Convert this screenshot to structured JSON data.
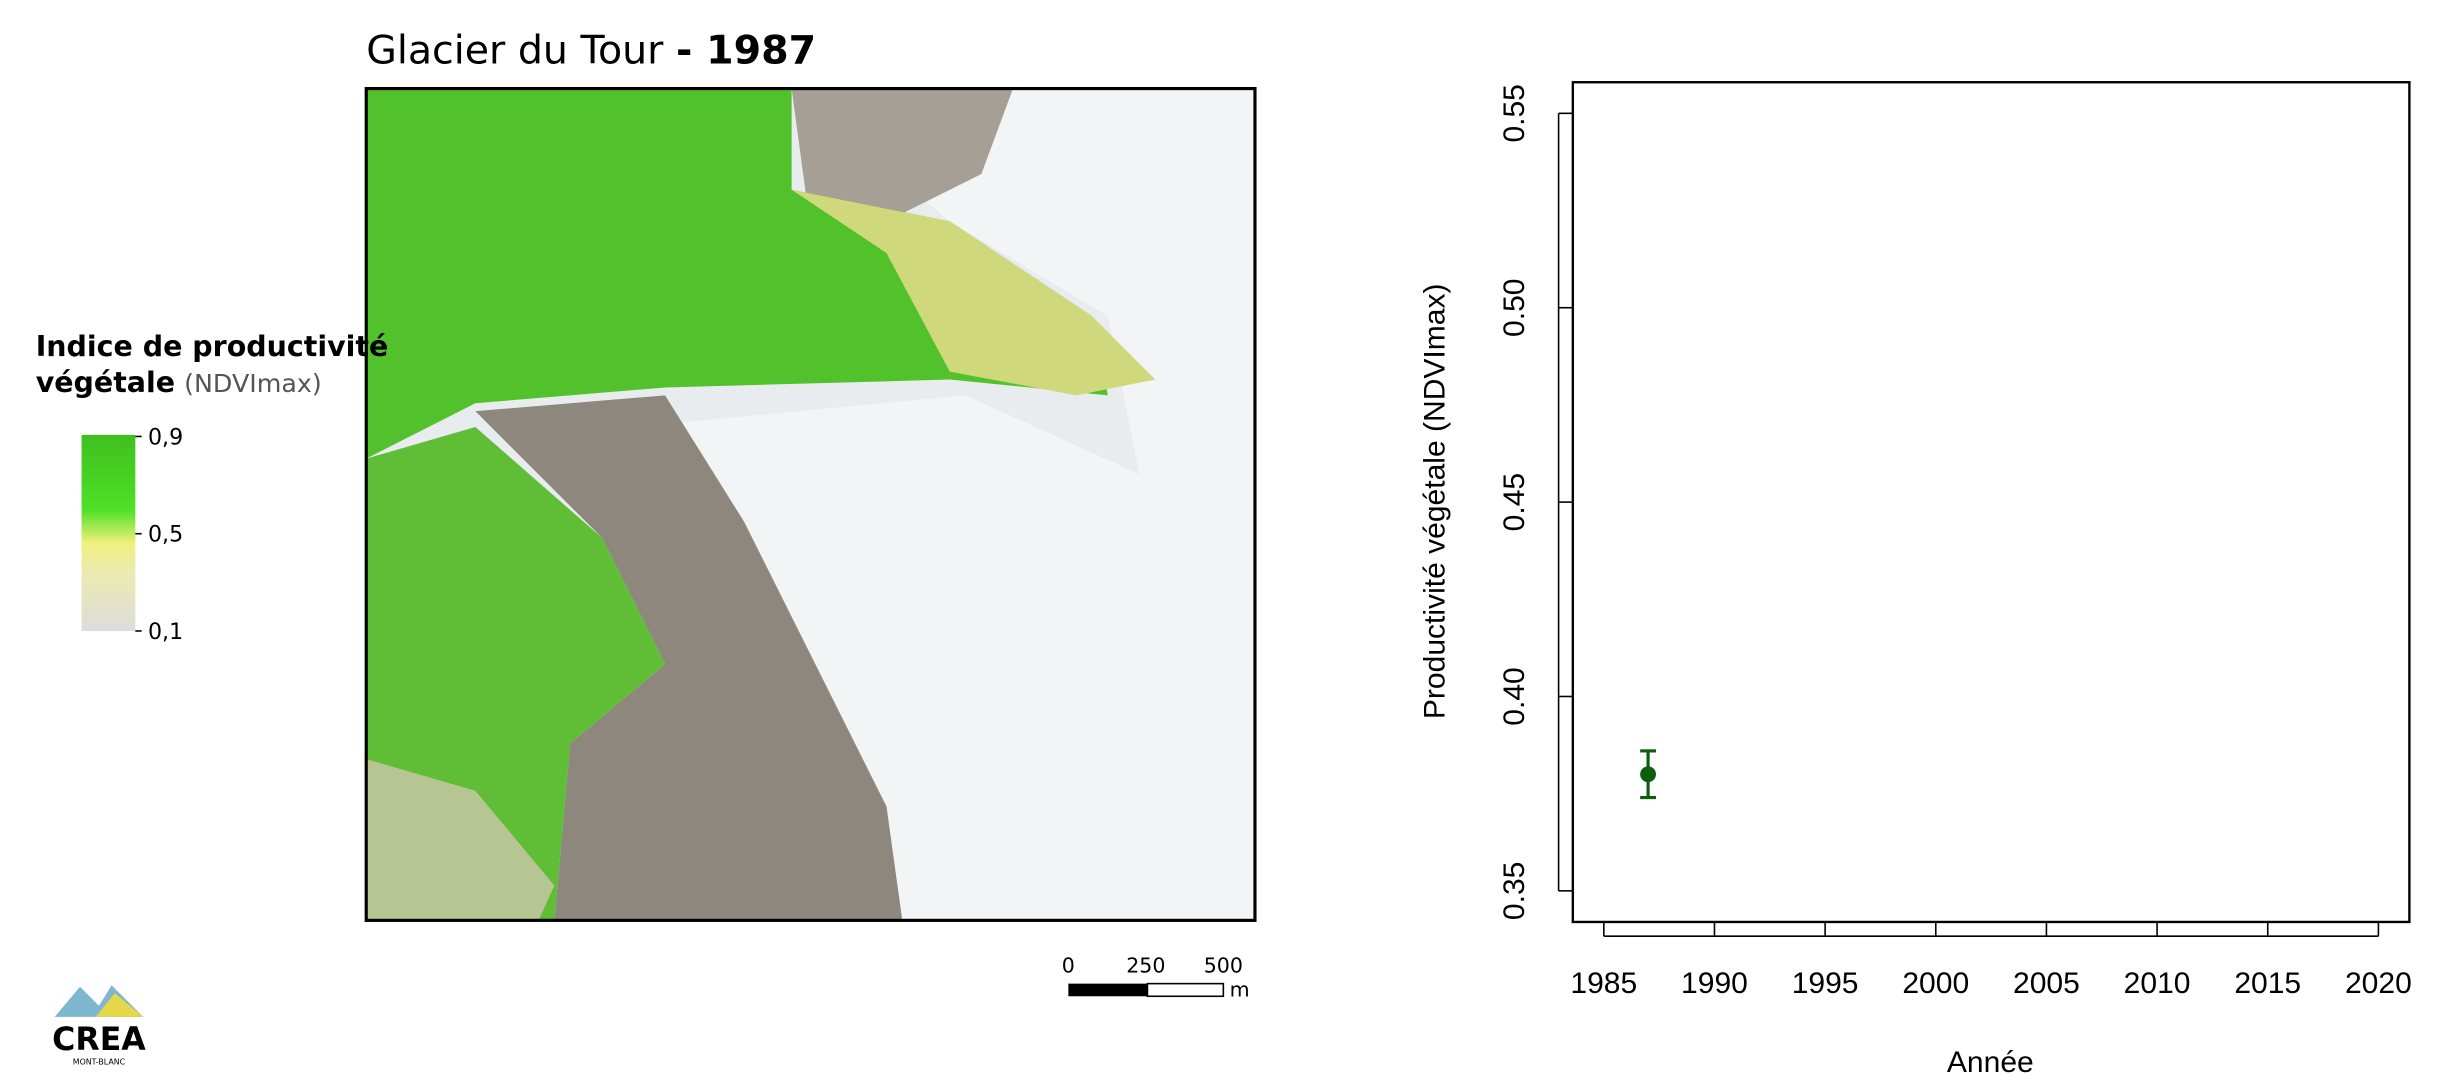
{
  "map": {
    "title": "Glacier du Tour",
    "year": "- 1987",
    "legend": {
      "title_bold": "Indice de productivité",
      "title_bold2": "végétale",
      "title_unit": "(NDVImax)",
      "range": [
        0.1,
        0.9
      ],
      "ticks": [
        {
          "value": 0.9,
          "label": "0,9"
        },
        {
          "value": 0.5,
          "label": "0,5"
        },
        {
          "value": 0.1,
          "label": "0,1"
        }
      ]
    },
    "scale": {
      "labels": [
        "0",
        "250",
        "500"
      ],
      "unit": "m"
    },
    "logo": {
      "name": "CREA",
      "sub": "MONT-BLANC"
    }
  },
  "chart_data": {
    "type": "scatter",
    "x": [
      1987
    ],
    "values": [
      0.38
    ],
    "errors": [
      0.006
    ],
    "color": "#0b5e0b",
    "x_label": "Année",
    "y_label": "Productivité végétale (NDVImax)",
    "xlim": [
      1983.6,
      2021.4
    ],
    "ylim": [
      0.342,
      0.558
    ],
    "xticks": [
      1985,
      1990,
      1995,
      2000,
      2005,
      2010,
      2015,
      2020
    ],
    "yticks": [
      0.35,
      {
        "value": 0.4,
        "label": "0.40"
      },
      0.45,
      {
        "value": 0.5,
        "label": "0.50"
      },
      0.55
    ]
  }
}
